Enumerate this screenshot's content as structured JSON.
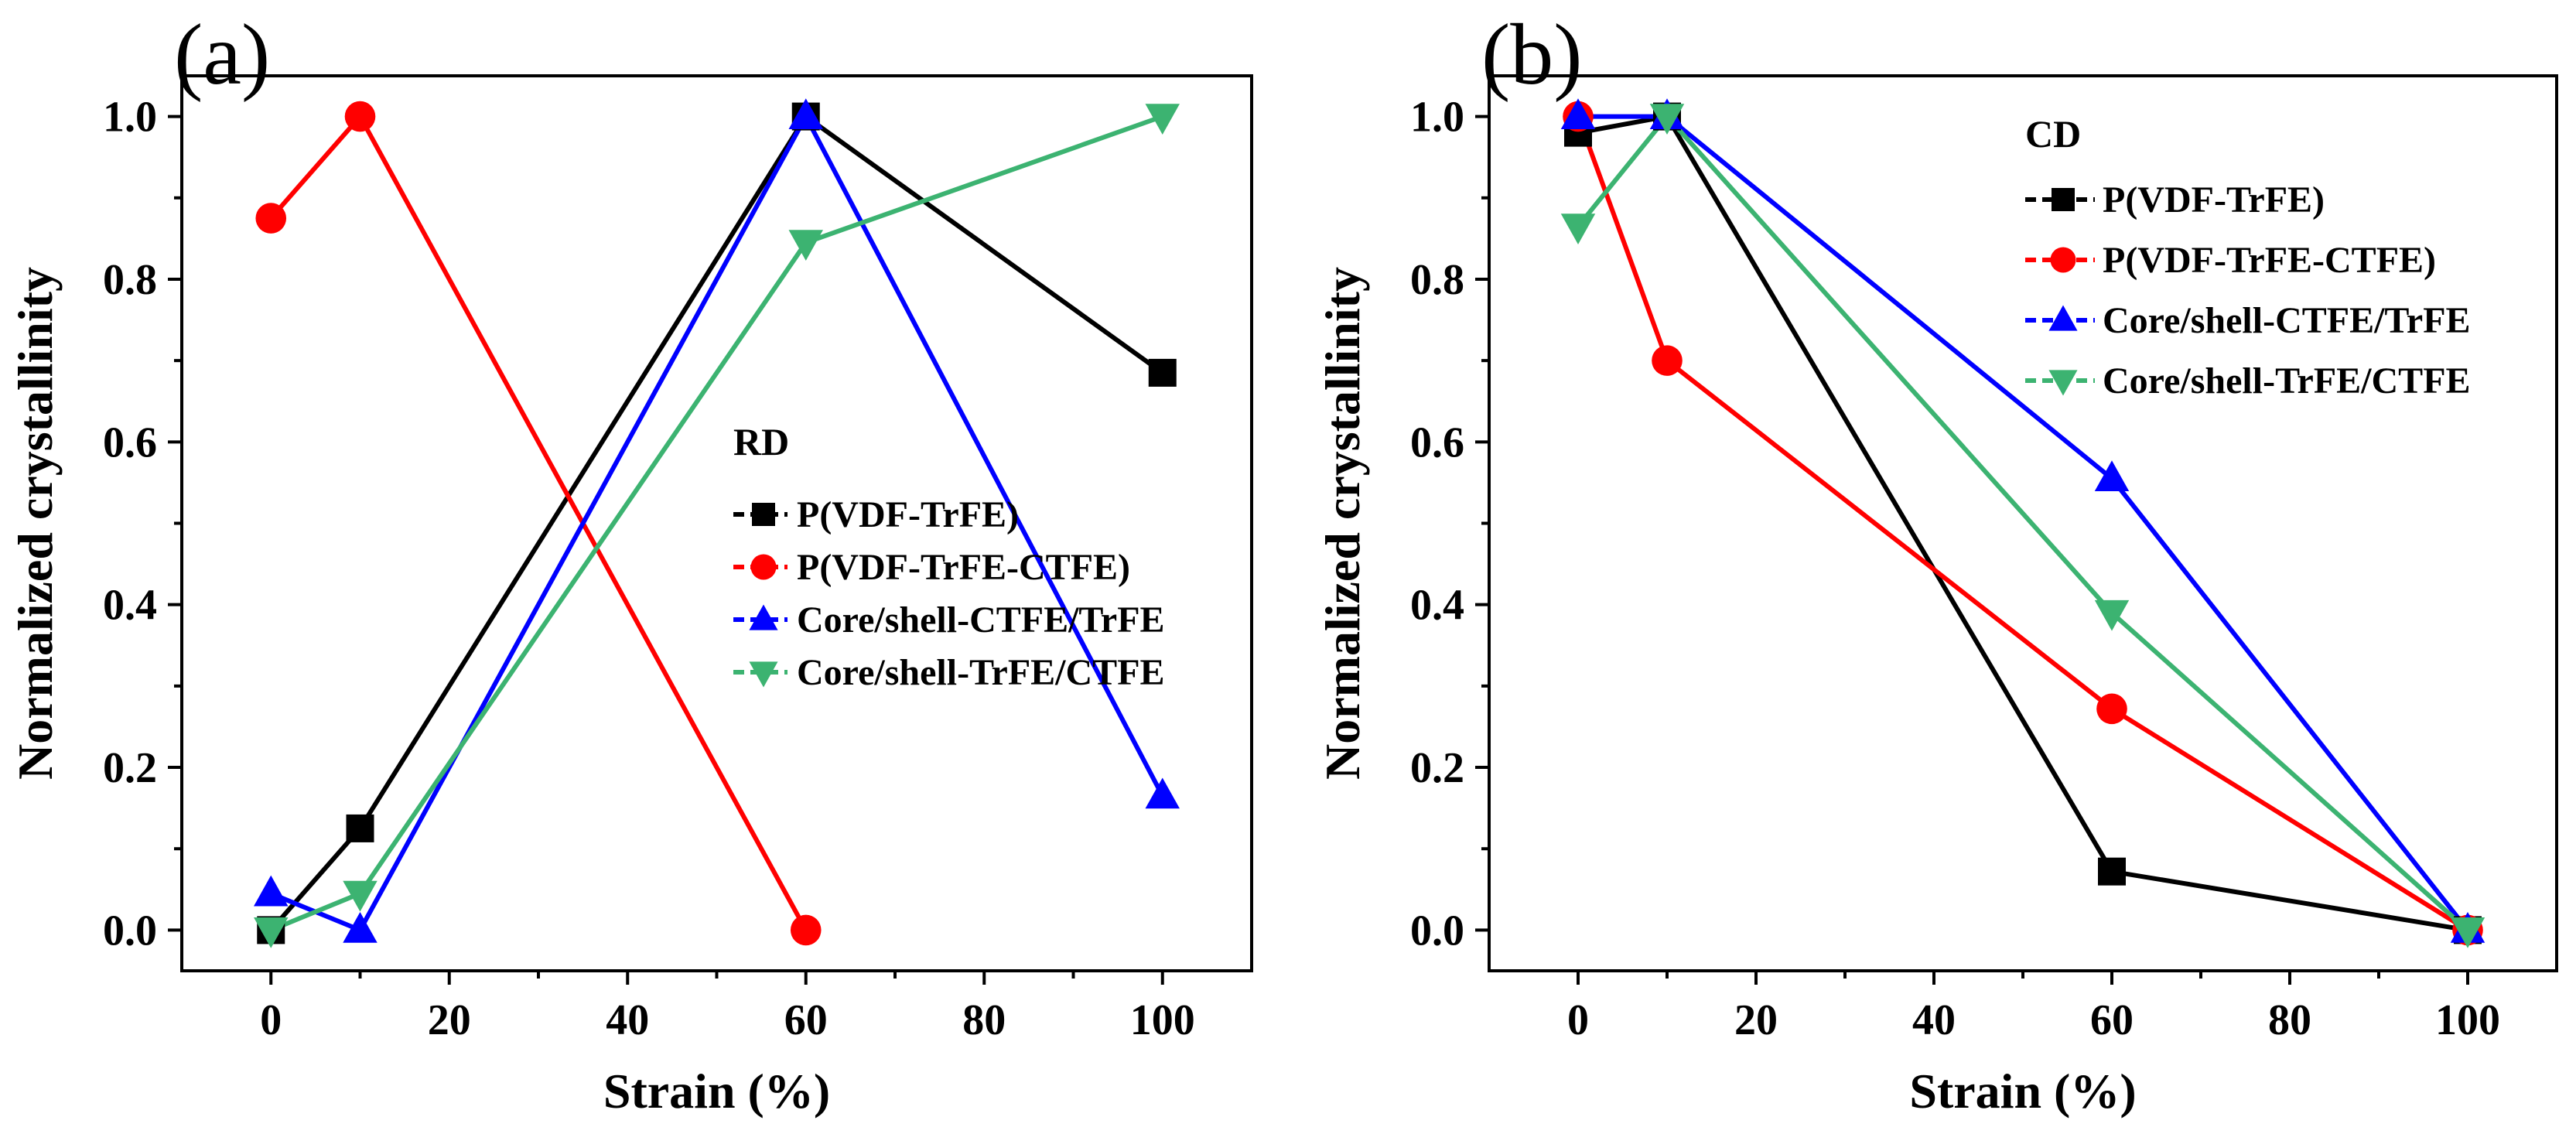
{
  "colors": {
    "P(VDF-TrFE)": "#000000",
    "P(VDF-TrFE-CTFE)": "#ff0000",
    "Core/shell-CTFE/TrFE": "#0000ff",
    "Core/shell-TrFE/CTFE": "#3cb371"
  },
  "chart_data": [
    {
      "type": "line",
      "panel_label": "(a)",
      "xlabel": "Strain (%)",
      "ylabel": "Normalized crystallinity",
      "xlim": [
        -10,
        110
      ],
      "ylim": [
        -0.05,
        1.05
      ],
      "xticks": [
        0,
        20,
        40,
        60,
        80,
        100
      ],
      "yticks": [
        0.0,
        0.2,
        0.4,
        0.6,
        0.8,
        1.0
      ],
      "x_tick_labels": [
        "0",
        "20",
        "40",
        "60",
        "80",
        "100"
      ],
      "y_tick_labels": [
        "0.0",
        "0.2",
        "0.4",
        "0.6",
        "0.8",
        "1.0"
      ],
      "legend_title": "RD",
      "series": [
        {
          "name": "P(VDF-TrFE)",
          "marker": "square",
          "x": [
            0,
            10,
            60,
            100
          ],
          "y": [
            0.0,
            0.125,
            1.0,
            0.685
          ]
        },
        {
          "name": "P(VDF-TrFE-CTFE)",
          "marker": "circle",
          "x": [
            0,
            10,
            60
          ],
          "y": [
            0.875,
            1.0,
            0.0
          ]
        },
        {
          "name": "Core/shell-CTFE/TrFE",
          "marker": "triangle-up",
          "x": [
            0,
            10,
            60,
            100
          ],
          "y": [
            0.045,
            0.0,
            1.0,
            0.165
          ]
        },
        {
          "name": "Core/shell-TrFE/CTFE",
          "marker": "triangle-down",
          "x": [
            0,
            10,
            60,
            100
          ],
          "y": [
            0.0,
            0.045,
            0.845,
            1.0
          ]
        }
      ]
    },
    {
      "type": "line",
      "panel_label": "(b)",
      "xlabel": "Strain (%)",
      "ylabel": "Normalized crystallinity",
      "xlim": [
        -10,
        110
      ],
      "ylim": [
        -0.05,
        1.05
      ],
      "xticks": [
        0,
        20,
        40,
        60,
        80,
        100
      ],
      "yticks": [
        0.0,
        0.2,
        0.4,
        0.6,
        0.8,
        1.0
      ],
      "x_tick_labels": [
        "0",
        "20",
        "40",
        "60",
        "80",
        "100"
      ],
      "y_tick_labels": [
        "0.0",
        "0.2",
        "0.4",
        "0.6",
        "0.8",
        "1.0"
      ],
      "legend_title": "CD",
      "series": [
        {
          "name": "P(VDF-TrFE)",
          "marker": "square",
          "x": [
            0,
            10,
            60,
            100
          ],
          "y": [
            0.98,
            1.0,
            0.072,
            0.0
          ]
        },
        {
          "name": "P(VDF-TrFE-CTFE)",
          "marker": "circle",
          "x": [
            0,
            10,
            60,
            100
          ],
          "y": [
            1.0,
            0.7,
            0.272,
            0.0
          ]
        },
        {
          "name": "Core/shell-CTFE/TrFE",
          "marker": "triangle-up",
          "x": [
            0,
            10,
            60,
            100
          ],
          "y": [
            1.0,
            1.0,
            0.555,
            0.0
          ]
        },
        {
          "name": "Core/shell-TrFE/CTFE",
          "marker": "triangle-down",
          "x": [
            0,
            10,
            60,
            100
          ],
          "y": [
            0.865,
            1.0,
            0.39,
            0.0
          ]
        }
      ]
    }
  ]
}
